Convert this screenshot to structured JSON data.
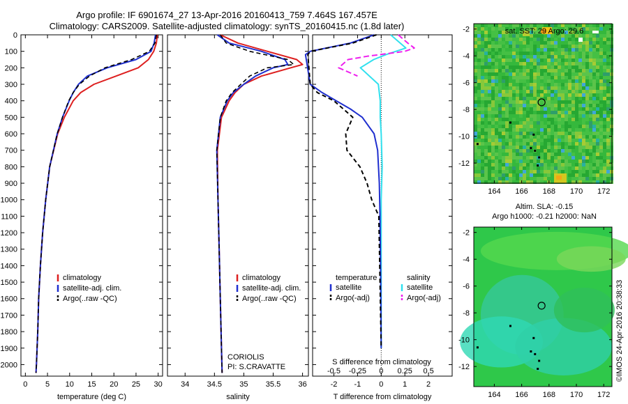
{
  "header": {
    "line1": "Argo profile: IF 6901674_27 13-Apr-2016 20160413_759 7.464S 167.457E",
    "line2": "Climatology: CARS2009. Satellite-adjusted climatology: synTS_20160415.nc (1.8d later)"
  },
  "colors": {
    "climatology": "#dd1f1f",
    "satellite": "#1f2fcf",
    "argo": "#000000",
    "sat_salinity": "#30e0ee",
    "argo_salinity": "#ee20ee"
  },
  "chart_data": [
    {
      "type": "line",
      "name": "temperature",
      "xlabel": "temperature (deg C)",
      "ylabel": "",
      "xlim": [
        -1,
        31
      ],
      "ylim": [
        2070,
        0
      ],
      "xticks": [
        0,
        5,
        10,
        15,
        20,
        25,
        30
      ],
      "yticks": [
        0,
        100,
        200,
        300,
        400,
        500,
        600,
        700,
        800,
        900,
        1000,
        1100,
        1200,
        1300,
        1400,
        1500,
        1600,
        1700,
        1800,
        1900,
        2000
      ],
      "legend": [
        "climatology",
        "satellite-adj. clim.",
        "Argo(..raw -QC)"
      ],
      "series": [
        {
          "name": "climatology",
          "depth": [
            0,
            50,
            100,
            150,
            200,
            250,
            300,
            350,
            400,
            500,
            600,
            800,
            1000,
            1200,
            1400,
            1600,
            1800,
            2000,
            2050
          ],
          "values": [
            29.8,
            29.6,
            29.0,
            27.8,
            25.5,
            20.5,
            15.5,
            12.5,
            10.8,
            8.8,
            7.3,
            5.5,
            4.6,
            3.9,
            3.4,
            3.0,
            2.8,
            2.5,
            2.4
          ]
        },
        {
          "name": "satellite-adj. clim.",
          "depth": [
            0,
            50,
            100,
            150,
            200,
            250,
            300,
            350,
            400,
            500,
            600,
            800,
            1000,
            1200,
            1400,
            1600,
            1800,
            2000,
            2050
          ],
          "values": [
            29.4,
            29.1,
            28.4,
            25.0,
            18.5,
            14.0,
            12.0,
            10.8,
            9.9,
            8.4,
            7.2,
            5.5,
            4.6,
            3.9,
            3.4,
            3.0,
            2.8,
            2.5,
            2.4
          ]
        },
        {
          "name": "Argo(..raw -QC)",
          "depth": [
            0,
            50,
            100,
            150,
            200,
            250,
            300,
            350,
            400,
            500,
            600,
            800,
            1000,
            1200,
            1400,
            1600,
            1800,
            2000,
            2050
          ],
          "values": [
            29.6,
            29.3,
            28.0,
            24.0,
            18.0,
            14.5,
            12.2,
            10.8,
            9.8,
            8.4,
            7.2,
            5.5,
            4.6,
            3.9,
            3.4,
            3.0,
            2.8,
            2.5,
            2.4
          ]
        }
      ]
    },
    {
      "type": "line",
      "name": "salinity",
      "xlabel": "salinity",
      "ylabel": "",
      "xlim": [
        33.7,
        36.1
      ],
      "ylim": [
        2070,
        0
      ],
      "xticks": [
        34,
        34.5,
        35,
        35.5,
        36
      ],
      "xticklabels": [
        "34",
        "34.5",
        "35",
        "35.5",
        "36"
      ],
      "legend": [
        "climatology",
        "satellite-adj. clim.",
        "Argo(..raw -QC)"
      ],
      "annotation": [
        "CORIOLIS",
        "PI: S.CRAVATTE"
      ],
      "series": [
        {
          "name": "climatology",
          "depth": [
            0,
            50,
            100,
            150,
            180,
            200,
            250,
            300,
            350,
            400,
            500,
            700,
            1000,
            1300,
            1600,
            1900,
            2050
          ],
          "values": [
            34.6,
            34.9,
            35.4,
            35.9,
            36.0,
            35.8,
            35.3,
            35.0,
            34.85,
            34.75,
            34.62,
            34.55,
            34.56,
            34.58,
            34.6,
            34.62,
            34.63
          ]
        },
        {
          "name": "satellite-adj. clim.",
          "depth": [
            0,
            50,
            100,
            150,
            180,
            200,
            250,
            300,
            350,
            400,
            500,
            700,
            1000,
            1300,
            1600,
            1900,
            2050
          ],
          "values": [
            34.55,
            34.75,
            35.3,
            35.7,
            35.75,
            35.5,
            35.2,
            35.0,
            34.82,
            34.72,
            34.6,
            34.54,
            34.56,
            34.58,
            34.6,
            34.62,
            34.63
          ]
        },
        {
          "name": "Argo(..raw -QC)",
          "depth": [
            0,
            50,
            100,
            150,
            180,
            200,
            250,
            300,
            350,
            400,
            500,
            700,
            1000,
            1300,
            1600,
            1900,
            2050
          ],
          "values": [
            34.6,
            34.7,
            35.1,
            35.75,
            35.85,
            35.4,
            35.1,
            34.95,
            34.8,
            34.7,
            34.6,
            34.54,
            34.56,
            34.58,
            34.6,
            34.62,
            34.63
          ]
        }
      ]
    },
    {
      "type": "line",
      "name": "difference",
      "xlabel": "T difference from climatology",
      "top_label": "S difference from climatology",
      "xlim": [
        -2.9,
        3.0
      ],
      "ylim": [
        2070,
        0
      ],
      "xticks": [
        -2,
        -1,
        0,
        1,
        2
      ],
      "s_ticks": [
        -0.5,
        -0.25,
        0,
        0.25,
        0.5
      ],
      "s_ticklabels": [
        "-0.5",
        "-0.25",
        "0",
        "0.25",
        "0.5"
      ],
      "s_scale": 4,
      "legend_temperature": "temperature",
      "legend_salinity": "salinity",
      "legend_satellite": "satellite",
      "legend_argo": "Argo(-adj)",
      "series": [
        {
          "name": "temperature satellite",
          "depth": [
            0,
            50,
            100,
            120,
            300,
            350,
            400,
            450,
            500,
            600,
            700,
            900,
            1100,
            1500,
            1900
          ],
          "values": [
            -0.3,
            -1.3,
            -3.0,
            -3.2,
            -3.0,
            -2.5,
            -1.9,
            -1.3,
            -0.8,
            -0.3,
            -0.15,
            -0.08,
            -0.05,
            -0.02,
            0
          ]
        },
        {
          "name": "temperature Argo(-adj)",
          "depth": [
            0,
            50,
            100,
            120,
            300,
            350,
            400,
            450,
            500,
            600,
            700,
            800,
            900,
            1000,
            1100,
            1500,
            1900
          ],
          "values": [
            -0.2,
            -1.2,
            -3.0,
            -3.1,
            -3.0,
            -2.7,
            -2.0,
            -1.6,
            -1.2,
            -1.5,
            -1.45,
            -0.9,
            -0.6,
            -0.4,
            -0.1,
            -0.05,
            0
          ]
        },
        {
          "name": "salinity satellite",
          "depth": [
            0,
            50,
            80,
            120,
            150,
            200,
            300,
            400,
            500,
            600,
            800,
            1000,
            1400,
            1900
          ],
          "values": [
            0.1,
            0.2,
            0.26,
            0.05,
            -0.08,
            -0.22,
            -0.03,
            -0.01,
            -0.01,
            0.0,
            0.01,
            0.0,
            0.0,
            0.0
          ]
        },
        {
          "name": "salinity Argo(-adj)",
          "depth": [
            0,
            50,
            80,
            100,
            130,
            150,
            200,
            250
          ],
          "values": [
            0.18,
            0.28,
            0.35,
            0.25,
            -0.15,
            -0.35,
            -0.45,
            -0.25
          ]
        }
      ]
    },
    {
      "type": "heatmap",
      "name": "sst-map",
      "title": "sat. SST: 29 Argo: 29.6",
      "xticks": [
        164,
        166,
        168,
        170,
        172
      ],
      "yticks": [
        -2,
        -4,
        -6,
        -8,
        -10,
        -12
      ],
      "xlim": [
        162.5,
        172.6
      ],
      "ylim": [
        -13.5,
        -1.6
      ],
      "marker": {
        "lon": 167.457,
        "lat": -7.464
      }
    },
    {
      "type": "heatmap",
      "name": "sla-map",
      "title": "Altim. SLA: -0.15",
      "subtitle": "Argo h1000: -0.21 h2000: NaN",
      "xticks": [
        164,
        166,
        168,
        170,
        172
      ],
      "yticks": [
        -2,
        -4,
        -6,
        -8,
        -10,
        -12
      ],
      "xlim": [
        162.5,
        172.6
      ],
      "ylim": [
        -13.5,
        -1.6
      ],
      "marker": {
        "lon": 167.457,
        "lat": -7.464
      }
    }
  ],
  "legends": {
    "climatology": "climatology",
    "satellite": "satellite-adj. clim.",
    "argo": "Argo(..raw -QC)"
  },
  "credit": "©IMOS 24-Apr-2016 20:38:33"
}
